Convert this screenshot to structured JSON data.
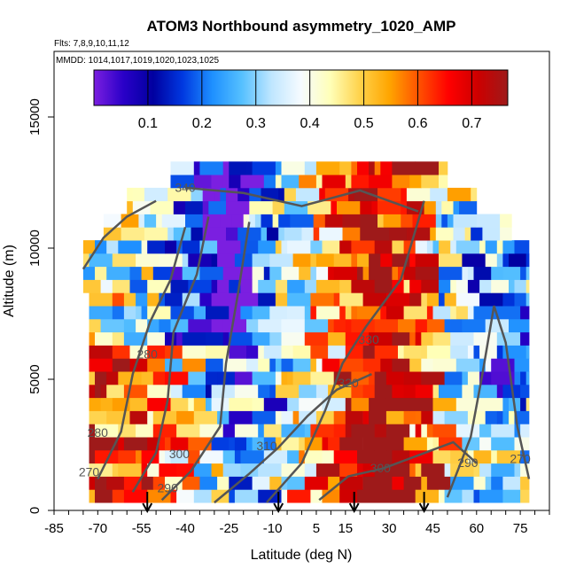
{
  "chart_data": {
    "type": "heatmap",
    "title": "ATOM3 Northbound asymmetry_1020_AMP",
    "flights_label": "Flts: 7,8,9,10,11,12",
    "dates_label": "MMDD: 1014,1017,1019,1020,1023,1025",
    "xlabel": "Latitude (deg N)",
    "ylabel": "Altitude (m)",
    "xlim": [
      -85,
      85
    ],
    "ylim": [
      0,
      17500
    ],
    "x_ticks": [
      -85,
      -70,
      -55,
      -40,
      -25,
      -10,
      5,
      15,
      30,
      45,
      60,
      75
    ],
    "x_tick_labels": [
      "-85",
      "-70",
      "-55",
      "-40",
      "-25",
      "-10",
      "5",
      "15",
      "30",
      "45",
      "60",
      "75"
    ],
    "y_ticks": [
      0,
      5000,
      10000,
      15000
    ],
    "y_tick_labels": [
      "0",
      "5000",
      "10000",
      "15000"
    ],
    "colorbar": {
      "range": [
        0,
        0.7667
      ],
      "ticks": [
        0.1,
        0.2,
        0.3,
        0.4,
        0.5,
        0.6,
        0.7
      ],
      "tick_labels": [
        "0.1",
        "0.2",
        "0.3",
        "0.4",
        "0.5",
        "0.6",
        "0.7"
      ],
      "colors": [
        "#7b1fe0",
        "#2a00c8",
        "#0000a0",
        "#0038e0",
        "#1e90ff",
        "#55c0ff",
        "#bfe6ff",
        "#f6fbff",
        "#ffffb8",
        "#ffd24a",
        "#ffa500",
        "#ff5000",
        "#ff0000",
        "#cc0000",
        "#9e1a1a"
      ]
    },
    "contour_labels": [
      {
        "text": "340",
        "lat": -40,
        "alt": 12150
      },
      {
        "text": "330",
        "lat": 23,
        "alt": 6350
      },
      {
        "text": "320",
        "lat": 16,
        "alt": 4700
      },
      {
        "text": "310",
        "lat": -12,
        "alt": 2300
      },
      {
        "text": "300",
        "lat": -42,
        "alt": 2000
      },
      {
        "text": "300",
        "lat": 27,
        "alt": 1450
      },
      {
        "text": "290",
        "lat": -46,
        "alt": 700
      },
      {
        "text": "290",
        "lat": 57,
        "alt": 1650
      },
      {
        "text": "280",
        "lat": -70,
        "alt": 2800
      },
      {
        "text": "280",
        "lat": -53,
        "alt": 5800
      },
      {
        "text": "270",
        "lat": -73,
        "alt": 1300
      },
      {
        "text": "270",
        "lat": 75,
        "alt": 1800
      }
    ],
    "flight_markers_lat": [
      -53,
      -8,
      18,
      42
    ],
    "data_extent": {
      "lat_min": -73,
      "lat_max": 78,
      "alt_min": 300,
      "alt_max": 13300
    }
  }
}
